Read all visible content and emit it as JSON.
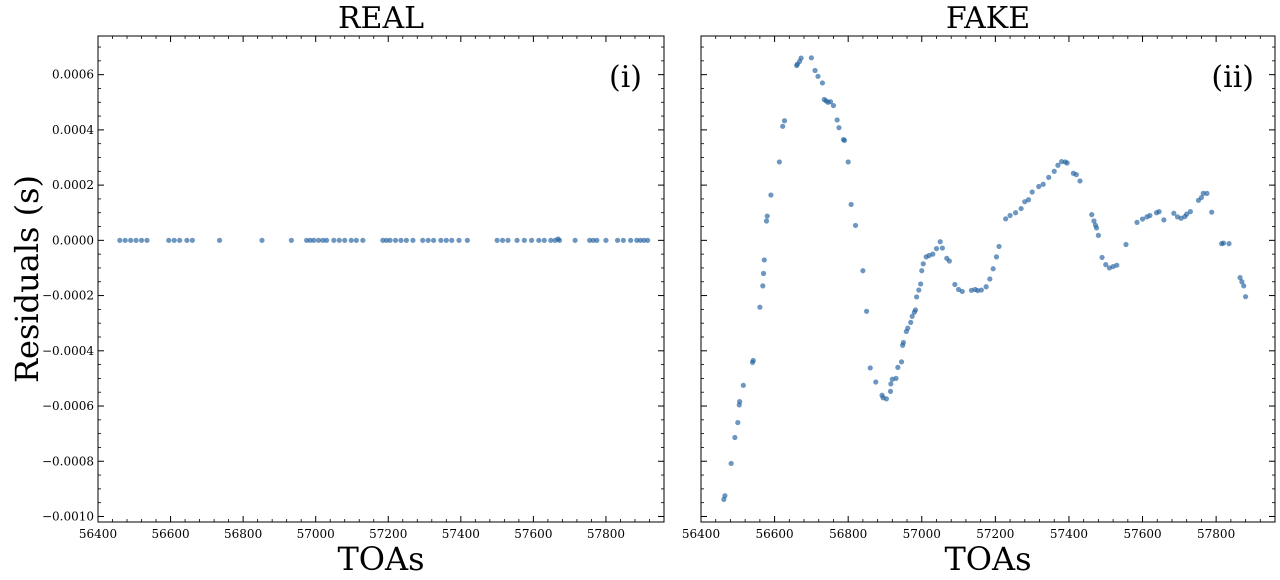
{
  "chart_data": [
    {
      "type": "scatter",
      "title": "REAL",
      "xlabel": "TOAs",
      "ylabel": "Residuals (s)",
      "panel_tag": "(i)",
      "xlim": [
        56400,
        57960
      ],
      "ylim": [
        -0.00102,
        0.00074
      ],
      "xticks": [
        56400,
        56600,
        56800,
        57000,
        57200,
        57400,
        57600,
        57800
      ],
      "xtick_labels": [
        "56400",
        "56600",
        "56800",
        "57000",
        "57200",
        "57400",
        "57600",
        "57800"
      ],
      "yticks": [
        -0.001,
        -0.0008,
        -0.0006,
        -0.0004,
        -0.0002,
        0.0,
        0.0002,
        0.0004,
        0.0006
      ],
      "ytick_labels": [
        "−0.0010",
        "−0.0008",
        "−0.0006",
        "−0.0004",
        "−0.0002",
        "0.0000",
        "0.0002",
        "0.0004",
        "0.0006"
      ],
      "marker_color": "#1f5f9e",
      "series": [
        {
          "x": [
            56460,
            56475,
            56490,
            56505,
            56520,
            56535,
            56595,
            56610,
            56625,
            56645,
            56660,
            56735,
            56852,
            56933,
            56975,
            56985,
            56995,
            57008,
            57020,
            57030,
            57050,
            57065,
            57080,
            57098,
            57112,
            57130,
            57185,
            57195,
            57205,
            57220,
            57235,
            57250,
            57268,
            57295,
            57310,
            57325,
            57345,
            57360,
            57375,
            57395,
            57418,
            57500,
            57515,
            57530,
            57555,
            57575,
            57595,
            57615,
            57630,
            57648,
            57660,
            57668,
            57672,
            57715,
            57755,
            57765,
            57775,
            57800,
            57832,
            57848,
            57868,
            57885,
            57895,
            57905,
            57915
          ],
          "y": [
            0,
            0,
            0,
            0,
            0,
            0,
            0,
            0,
            0,
            0,
            0,
            0,
            0,
            0,
            0,
            0,
            0,
            0,
            0,
            0,
            0,
            0,
            0,
            0,
            0,
            0,
            0,
            0,
            0,
            0,
            0,
            0,
            0,
            0,
            0,
            0,
            0,
            0,
            0,
            0,
            0,
            0,
            0,
            0,
            0,
            0,
            0,
            0,
            0,
            0,
            0,
            5e-06,
            0,
            0,
            0,
            0,
            0,
            0,
            0,
            0,
            0,
            0,
            0,
            0,
            0
          ]
        }
      ]
    },
    {
      "type": "scatter",
      "title": "FAKE",
      "xlabel": "TOAs",
      "ylabel": "",
      "panel_tag": "(ii)",
      "xlim": [
        56400,
        57960
      ],
      "ylim": [
        -0.00102,
        0.00074
      ],
      "xticks": [
        56400,
        56600,
        56800,
        57000,
        57200,
        57400,
        57600,
        57800
      ],
      "xtick_labels": [
        "56400",
        "56600",
        "56800",
        "57000",
        "57200",
        "57400",
        "57600",
        "57800"
      ],
      "yticks": [
        -0.001,
        -0.0008,
        -0.0006,
        -0.0004,
        -0.0002,
        0.0,
        0.0002,
        0.0004,
        0.0006
      ],
      "ytick_labels": [],
      "marker_color": "#1f5f9e",
      "series": [
        {
          "x": [
            56462,
            56465,
            56482,
            56492,
            56500,
            56504,
            56505,
            56515,
            56540,
            56542,
            56560,
            56568,
            56570,
            56572,
            56578,
            56580,
            56590,
            56613,
            56622,
            56627,
            56660,
            56662,
            56668,
            56672,
            56700,
            56710,
            56718,
            56730,
            56735,
            56740,
            56745,
            56752,
            56760,
            56770,
            56775,
            56787,
            56790,
            56800,
            56808,
            56820,
            56840,
            56850,
            56860,
            56875,
            56892,
            56895,
            56904,
            56915,
            56916,
            56920,
            56930,
            56935,
            56945,
            56948,
            56950,
            56958,
            56962,
            56970,
            56974,
            56980,
            56983,
            56986,
            56992,
            56997,
            57000,
            57004,
            57012,
            57020,
            57030,
            57040,
            57050,
            57056,
            57068,
            57075,
            57090,
            57100,
            57110,
            57135,
            57145,
            57152,
            57162,
            57175,
            57185,
            57194,
            57203,
            57210,
            57228,
            57240,
            57255,
            57270,
            57280,
            57290,
            57300,
            57318,
            57330,
            57345,
            57360,
            57370,
            57380,
            57390,
            57395,
            57412,
            57420,
            57430,
            57462,
            57468,
            57472,
            57475,
            57480,
            57490,
            57500,
            57510,
            57520,
            57530,
            57555,
            57585,
            57600,
            57612,
            57620,
            57638,
            57645,
            57658,
            57685,
            57695,
            57705,
            57715,
            57720,
            57730,
            57752,
            57760,
            57765,
            57775,
            57788,
            57815,
            57820,
            57835,
            57865,
            57870,
            57875,
            57880
          ],
          "y": [
            -0.000938,
            -0.000925,
            -0.000808,
            -0.000714,
            -0.00066,
            -0.000596,
            -0.000584,
            -0.000525,
            -0.000442,
            -0.000435,
            -0.000242,
            -0.000165,
            -0.00012,
            -7.1e-05,
            7e-05,
            8.8e-05,
            0.000164,
            0.000284,
            0.000413,
            0.000433,
            0.000633,
            0.000638,
            0.000648,
            0.00066,
            0.000661,
            0.000615,
            0.000594,
            0.00057,
            0.00051,
            0.000505,
            0.0005,
            0.000502,
            0.000488,
            0.000436,
            0.000408,
            0.000365,
            0.000362,
            0.000284,
            0.00013,
            5.4e-05,
            -0.00011,
            -0.000257,
            -0.000462,
            -0.000513,
            -0.000561,
            -0.00057,
            -0.000574,
            -0.000547,
            -0.00052,
            -0.000503,
            -0.0005,
            -0.00046,
            -0.00044,
            -0.00038,
            -0.00037,
            -0.00033,
            -0.000318,
            -0.000297,
            -0.000275,
            -0.00026,
            -0.000252,
            -0.000205,
            -0.00018,
            -0.000158,
            -0.00011,
            -8.5e-05,
            -6e-05,
            -5.5e-05,
            -5e-05,
            -3e-05,
            -5e-06,
            -2.8e-05,
            -6.5e-05,
            -7.5e-05,
            -0.00016,
            -0.000178,
            -0.000185,
            -0.000181,
            -0.000178,
            -0.000182,
            -0.00018,
            -0.000168,
            -0.00014,
            -0.000103,
            -6e-05,
            -2.2e-05,
            7.8e-05,
            9e-05,
            0.0001,
            0.000115,
            0.00014,
            0.000147,
            0.000175,
            0.000195,
            0.000203,
            0.000228,
            0.00025,
            0.000272,
            0.000285,
            0.000284,
            0.00028,
            0.000243,
            0.000238,
            0.000215,
            9.3e-05,
            7e-05,
            5.5e-05,
            4.5e-05,
            1.8e-05,
            -6.2e-05,
            -8.8e-05,
            -0.0001,
            -9.5e-05,
            -9e-05,
            -1.5e-05,
            6.5e-05,
            7.7e-05,
            8.5e-05,
            9e-05,
            0.0001,
            0.000104,
            7.4e-05,
            9.8e-05,
            8.5e-05,
            8e-05,
            8.6e-05,
            9.5e-05,
            0.000104,
            0.000145,
            0.000155,
            0.00017,
            0.00017,
            0.000102,
            -1.2e-05,
            -1e-05,
            -1.2e-05,
            -0.000135,
            -0.00015,
            -0.000165,
            -0.000204
          ]
        }
      ]
    }
  ]
}
